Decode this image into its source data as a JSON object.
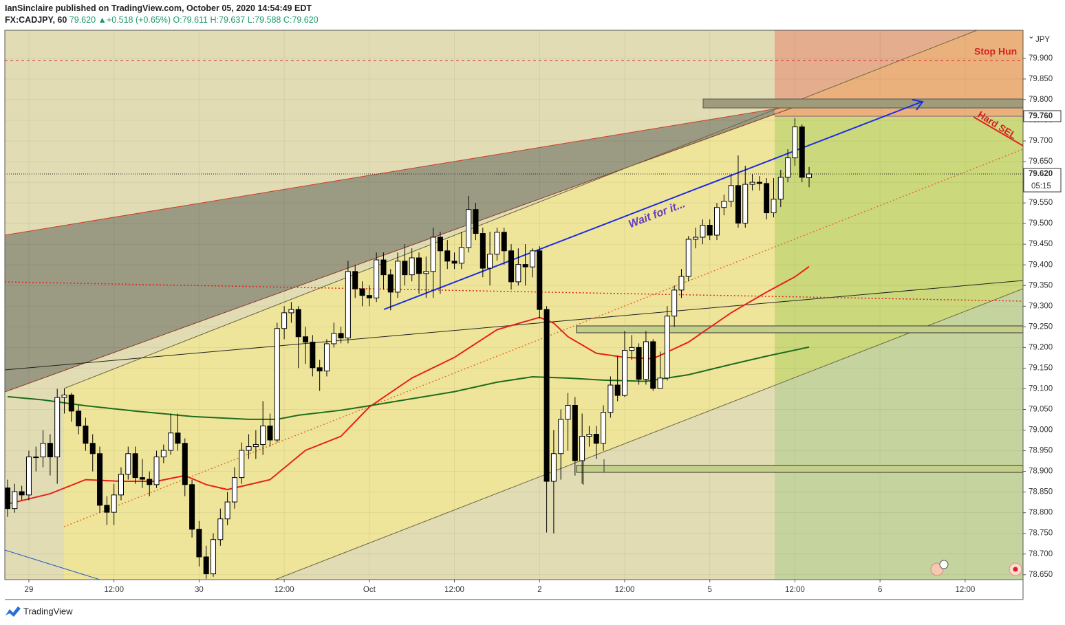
{
  "chart_data": {
    "type": "candlestick",
    "header": {
      "line1": "IanSinclaire published on TradingView.com, October 05, 2020 14:54:49 EDT",
      "symbol": "FX:CADJPY, 60",
      "last": "79.620",
      "arrow": "▲",
      "change": "+0.518 (+0.65%)",
      "ohlc": [
        "O:79.611",
        "H:79.637",
        "L:79.588",
        "C:79.620"
      ]
    },
    "footer": "TradingView",
    "currency": "JPY",
    "annotations": [
      "Wait for it...",
      "Stop Hun",
      "Hard SEL"
    ],
    "up_color": "#ffffff",
    "down_color": "#000000",
    "xlim": [
      -3.39,
      140.16
    ],
    "ylim": [
      78.638,
      79.968
    ],
    "xticks": [
      {
        "value": 0,
        "label": "29"
      },
      {
        "value": 12,
        "label": "12:00"
      },
      {
        "value": 24,
        "label": "30"
      },
      {
        "value": 36,
        "label": "12:00"
      },
      {
        "value": 48,
        "label": "Oct"
      },
      {
        "value": 60,
        "label": "12:00"
      },
      {
        "value": 72,
        "label": "2"
      },
      {
        "value": 84,
        "label": "12:00"
      },
      {
        "value": 96,
        "label": "5"
      },
      {
        "value": 108,
        "label": "12:00"
      },
      {
        "value": 120,
        "label": "6"
      },
      {
        "value": 132,
        "label": "12:00"
      }
    ],
    "yticks": [
      {
        "value": 78.65,
        "label": "78.650"
      },
      {
        "value": 78.7,
        "label": "78.700"
      },
      {
        "value": 78.75,
        "label": "78.750"
      },
      {
        "value": 78.8,
        "label": "78.800"
      },
      {
        "value": 78.85,
        "label": "78.850"
      },
      {
        "value": 78.9,
        "label": "78.900"
      },
      {
        "value": 78.95,
        "label": "78.950"
      },
      {
        "value": 79.0,
        "label": "79.000"
      },
      {
        "value": 79.05,
        "label": "79.050"
      },
      {
        "value": 79.1,
        "label": "79.100"
      },
      {
        "value": 79.15,
        "label": "79.150"
      },
      {
        "value": 79.2,
        "label": "79.200"
      },
      {
        "value": 79.25,
        "label": "79.250"
      },
      {
        "value": 79.3,
        "label": "79.300"
      },
      {
        "value": 79.35,
        "label": "79.350"
      },
      {
        "value": 79.4,
        "label": "79.400"
      },
      {
        "value": 79.45,
        "label": "79.450"
      },
      {
        "value": 79.5,
        "label": "79.500"
      },
      {
        "value": 79.55,
        "label": "79.550"
      },
      {
        "value": 79.6,
        "label": "79.600"
      },
      {
        "value": 79.65,
        "label": "79.650"
      },
      {
        "value": 79.7,
        "label": "79.700"
      },
      {
        "value": 79.75,
        "label": "79.750"
      },
      {
        "value": 79.8,
        "label": "79.800"
      },
      {
        "value": 79.85,
        "label": "79.850"
      },
      {
        "value": 79.9,
        "label": "79.900"
      }
    ],
    "grid": true,
    "last_price": {
      "value": 79.62,
      "label": "79.620"
    },
    "countdown": "05:15",
    "level_label": {
      "value": 79.76,
      "label": "79.760"
    },
    "x": [
      -3,
      -2,
      -1,
      0,
      1,
      2,
      3,
      4,
      5,
      6,
      7,
      8,
      9,
      10,
      11,
      12,
      13,
      14,
      15,
      16,
      17,
      18,
      19,
      20,
      21,
      22,
      23,
      24,
      25,
      26,
      27,
      28,
      29,
      30,
      31,
      32,
      33,
      34,
      35,
      36,
      37,
      38,
      39,
      40,
      41,
      42,
      43,
      44,
      45,
      46,
      47,
      48,
      49,
      50,
      51,
      52,
      53,
      54,
      55,
      56,
      57,
      58,
      59,
      60,
      61,
      62,
      63,
      64,
      65,
      66,
      67,
      68,
      69,
      70,
      71,
      72,
      73,
      74,
      75,
      76,
      77,
      78,
      79,
      80,
      81,
      82,
      83,
      84,
      85,
      86,
      87,
      88,
      89,
      90,
      91,
      92,
      93,
      94,
      95,
      96,
      97,
      98,
      99,
      100,
      101,
      102,
      103,
      104,
      105,
      106,
      107,
      108,
      109,
      110
    ],
    "open": [
      78.86,
      78.81,
      78.851,
      78.843,
      78.935,
      78.935,
      78.968,
      78.935,
      79.079,
      79.085,
      79.046,
      79.01,
      78.968,
      78.943,
      78.818,
      78.801,
      78.843,
      78.893,
      78.943,
      78.885,
      78.881,
      78.868,
      78.935,
      78.951,
      78.993,
      78.968,
      78.868,
      78.76,
      78.693,
      78.652,
      78.735,
      78.785,
      78.826,
      78.885,
      78.951,
      78.96,
      78.965,
      79.01,
      78.976,
      79.246,
      79.284,
      79.292,
      79.226,
      79.213,
      79.151,
      79.143,
      79.209,
      79.234,
      79.223,
      79.384,
      79.342,
      79.326,
      79.32,
      79.412,
      79.376,
      79.334,
      79.409,
      79.376,
      79.417,
      79.379,
      79.384,
      79.467,
      79.434,
      79.409,
      79.404,
      79.442,
      79.534,
      79.476,
      79.392,
      79.426,
      79.479,
      79.434,
      79.359,
      79.401,
      79.395,
      79.434,
      79.292,
      78.876,
      78.943,
      79.026,
      79.06,
      78.926,
      78.985,
      78.99,
      78.968,
      79.043,
      79.109,
      79.084,
      79.193,
      79.2,
      79.123,
      79.214,
      79.101,
      79.126,
      79.276,
      79.339,
      79.372,
      79.462,
      79.467,
      79.496,
      79.472,
      79.539,
      79.554,
      79.592,
      79.501,
      79.595,
      79.6,
      79.597,
      79.526,
      79.559,
      79.612,
      79.659,
      79.734,
      79.611
    ],
    "high": [
      78.88,
      78.87,
      78.865,
      78.95,
      78.96,
      79.0,
      78.99,
      79.1,
      79.1,
      79.09,
      79.06,
      79.03,
      78.99,
      78.96,
      78.84,
      78.87,
      78.91,
      78.96,
      78.96,
      78.93,
      78.9,
      78.95,
      78.965,
      79.04,
      79.04,
      78.98,
      78.88,
      78.78,
      78.72,
      78.75,
      78.81,
      78.85,
      78.91,
      78.97,
      78.99,
      79.0,
      79.07,
      79.04,
      79.26,
      79.3,
      79.31,
      79.3,
      79.25,
      79.23,
      79.17,
      79.22,
      79.26,
      79.25,
      79.41,
      79.4,
      79.36,
      79.35,
      79.43,
      79.43,
      79.39,
      79.43,
      79.45,
      79.44,
      79.43,
      79.42,
      79.49,
      79.48,
      79.46,
      79.43,
      79.48,
      79.567,
      79.55,
      79.49,
      79.48,
      79.49,
      79.49,
      79.45,
      79.44,
      79.45,
      79.44,
      79.445,
      79.3,
      79.0,
      79.05,
      79.09,
      79.08,
      79.04,
      79.01,
      79.01,
      79.06,
      79.13,
      79.18,
      79.24,
      79.23,
      79.21,
      79.24,
      79.22,
      79.19,
      79.3,
      79.35,
      79.39,
      79.47,
      79.49,
      79.51,
      79.51,
      79.55,
      79.57,
      79.62,
      79.665,
      79.64,
      79.62,
      79.615,
      79.61,
      79.61,
      79.63,
      79.68,
      79.755,
      79.74,
      79.637
    ],
    "low": [
      78.79,
      78.8,
      78.83,
      78.83,
      78.9,
      78.91,
      78.89,
      78.87,
      79.04,
      79.02,
      78.99,
      78.95,
      78.9,
      78.8,
      78.77,
      78.77,
      78.83,
      78.88,
      78.87,
      78.86,
      78.84,
      78.86,
      78.92,
      78.94,
      78.95,
      78.84,
      78.74,
      78.67,
      78.64,
      78.645,
      78.72,
      78.77,
      78.81,
      78.87,
      78.93,
      78.93,
      78.94,
      78.96,
      78.97,
      79.22,
      79.26,
      79.15,
      79.16,
      79.13,
      79.095,
      79.13,
      79.2,
      79.21,
      79.21,
      79.32,
      79.3,
      79.3,
      79.31,
      79.34,
      79.29,
      79.32,
      79.35,
      79.36,
      79.33,
      79.32,
      79.32,
      79.33,
      79.39,
      79.39,
      79.39,
      79.43,
      79.46,
      79.37,
      79.35,
      79.41,
      79.4,
      79.34,
      79.35,
      79.35,
      79.37,
      79.27,
      78.752,
      78.75,
      78.88,
      78.95,
      78.89,
      78.87,
      78.96,
      78.93,
      78.95,
      79.03,
      79.07,
      79.08,
      79.17,
      79.11,
      79.11,
      79.095,
      79.1,
      79.12,
      79.25,
      79.32,
      79.36,
      79.44,
      79.45,
      79.46,
      79.46,
      79.52,
      79.54,
      79.49,
      79.49,
      79.58,
      79.58,
      79.51,
      79.515,
      79.54,
      79.6,
      79.64,
      79.6,
      79.588
    ],
    "close": [
      78.81,
      78.851,
      78.843,
      78.935,
      78.935,
      78.968,
      78.935,
      79.079,
      79.085,
      79.046,
      79.01,
      78.968,
      78.943,
      78.818,
      78.801,
      78.843,
      78.893,
      78.943,
      78.885,
      78.881,
      78.868,
      78.935,
      78.951,
      78.993,
      78.968,
      78.868,
      78.76,
      78.693,
      78.652,
      78.735,
      78.785,
      78.826,
      78.885,
      78.951,
      78.96,
      78.965,
      79.01,
      78.976,
      79.246,
      79.284,
      79.292,
      79.226,
      79.213,
      79.151,
      79.143,
      79.209,
      79.234,
      79.223,
      79.384,
      79.342,
      79.326,
      79.32,
      79.412,
      79.376,
      79.334,
      79.409,
      79.376,
      79.417,
      79.379,
      79.384,
      79.467,
      79.434,
      79.409,
      79.404,
      79.442,
      79.534,
      79.476,
      79.392,
      79.426,
      79.479,
      79.434,
      79.359,
      79.401,
      79.395,
      79.434,
      79.292,
      78.876,
      78.943,
      79.026,
      79.06,
      78.926,
      78.985,
      78.99,
      78.968,
      79.043,
      79.109,
      79.084,
      79.193,
      79.2,
      79.123,
      79.214,
      79.101,
      79.126,
      79.276,
      79.339,
      79.372,
      79.462,
      79.467,
      79.496,
      79.472,
      79.539,
      79.554,
      79.592,
      79.501,
      79.595,
      79.6,
      79.597,
      79.526,
      79.559,
      79.612,
      79.659,
      79.734,
      79.612,
      79.62
    ],
    "overlays": [
      {
        "color": "#e8201a",
        "x": [
          -3,
          3,
          8,
          13,
          18,
          22,
          25,
          28,
          34,
          39,
          44,
          48,
          54,
          60,
          66,
          70,
          72,
          74,
          76,
          80,
          84,
          88,
          93,
          99,
          104,
          108,
          110
        ],
        "values": [
          78.821,
          78.846,
          78.88,
          78.876,
          78.876,
          78.89,
          78.868,
          78.856,
          78.88,
          78.951,
          78.985,
          79.056,
          79.126,
          79.176,
          79.243,
          79.263,
          79.273,
          79.259,
          79.226,
          79.186,
          79.176,
          79.173,
          79.213,
          79.284,
          79.334,
          79.371,
          79.396
        ]
      },
      {
        "color": "#1e6b1e",
        "x": [
          -3,
          2,
          8,
          15,
          23,
          31,
          35,
          38,
          44,
          48,
          54,
          60,
          66,
          71,
          76,
          81,
          87,
          93,
          99,
          104,
          110
        ],
        "values": [
          79.081,
          79.073,
          79.059,
          79.046,
          79.033,
          79.026,
          79.026,
          79.036,
          79.048,
          79.059,
          79.076,
          79.093,
          79.116,
          79.129,
          79.126,
          79.121,
          79.118,
          79.134,
          79.159,
          79.179,
          79.201
        ]
      }
    ]
  }
}
